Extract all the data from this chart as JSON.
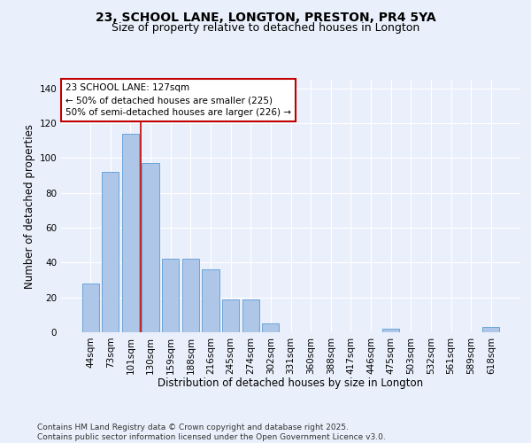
{
  "title": "23, SCHOOL LANE, LONGTON, PRESTON, PR4 5YA",
  "subtitle": "Size of property relative to detached houses in Longton",
  "xlabel": "Distribution of detached houses by size in Longton",
  "ylabel": "Number of detached properties",
  "categories": [
    "44sqm",
    "73sqm",
    "101sqm",
    "130sqm",
    "159sqm",
    "188sqm",
    "216sqm",
    "245sqm",
    "274sqm",
    "302sqm",
    "331sqm",
    "360sqm",
    "388sqm",
    "417sqm",
    "446sqm",
    "475sqm",
    "503sqm",
    "532sqm",
    "561sqm",
    "589sqm",
    "618sqm"
  ],
  "values": [
    28,
    92,
    114,
    97,
    42,
    42,
    36,
    19,
    19,
    5,
    0,
    0,
    0,
    0,
    0,
    2,
    0,
    0,
    0,
    0,
    3
  ],
  "bar_color": "#aec6e8",
  "bar_edge_color": "#5b9bd5",
  "redline_x": 2.5,
  "highlight_color": "#c00000",
  "annotation_text": "23 SCHOOL LANE: 127sqm\n← 50% of detached houses are smaller (225)\n50% of semi-detached houses are larger (226) →",
  "annotation_box_color": "#ffffff",
  "annotation_box_edge": "#c00000",
  "ylim": [
    0,
    145
  ],
  "yticks": [
    0,
    20,
    40,
    60,
    80,
    100,
    120,
    140
  ],
  "bg_color": "#eaf0fb",
  "grid_color": "#ffffff",
  "footer_text": "Contains HM Land Registry data © Crown copyright and database right 2025.\nContains public sector information licensed under the Open Government Licence v3.0.",
  "title_fontsize": 10,
  "subtitle_fontsize": 9,
  "axis_label_fontsize": 8.5,
  "tick_fontsize": 7.5,
  "annotation_fontsize": 7.5,
  "footer_fontsize": 6.5
}
